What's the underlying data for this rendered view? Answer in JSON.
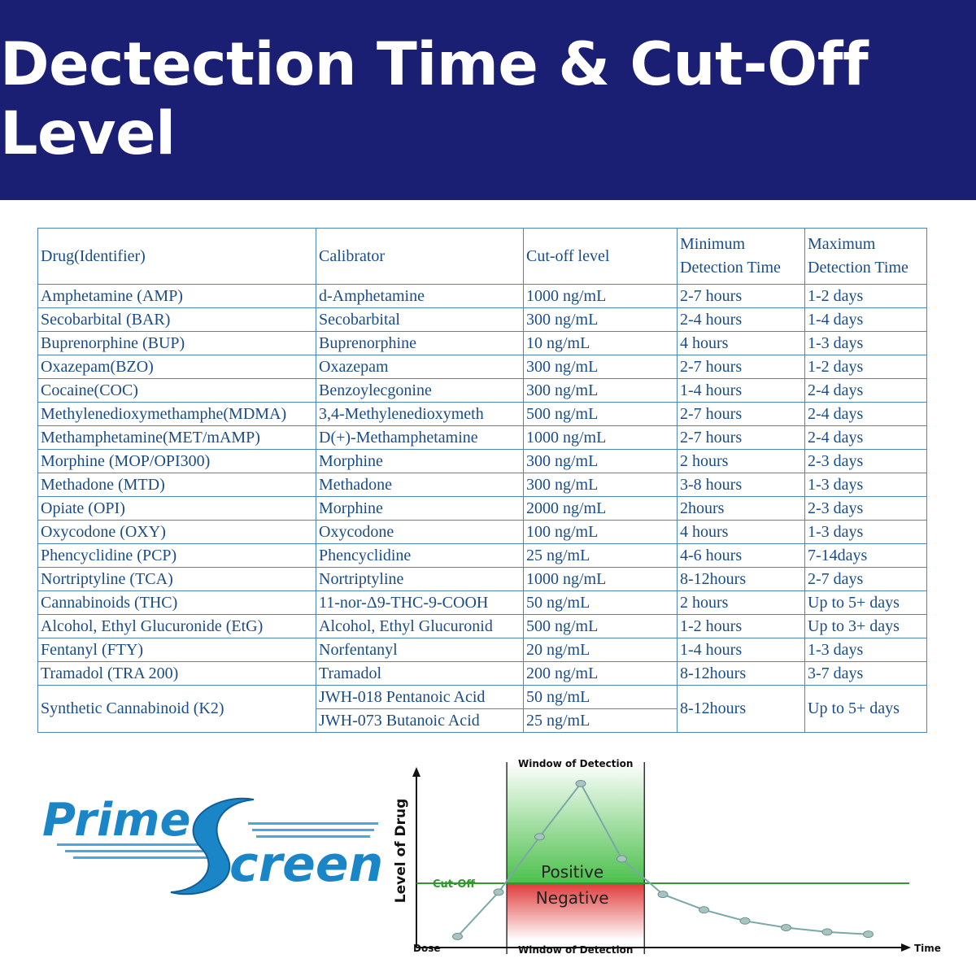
{
  "banner": {
    "title": "Dectection Time & Cut-Off Level"
  },
  "table": {
    "headers": {
      "drug": "Drug(Identifier)",
      "calibrator": "Calibrator",
      "cutoff": "Cut-off level",
      "min_line1": "Minimum",
      "min_line2": "Detection Time",
      "max_line1": "Maximum",
      "max_line2": "Detection Time"
    },
    "rows": [
      {
        "drug": "Amphetamine (AMP)",
        "calibrator": "d-Amphetamine",
        "cutoff": "1000 ng/mL",
        "min": "2-7 hours",
        "max": "1-2 days"
      },
      {
        "drug": "Secobarbital (BAR)",
        "calibrator": "Secobarbital",
        "cutoff": "300 ng/mL",
        "min": "2-4 hours",
        "max": "1-4 days"
      },
      {
        "drug": "Buprenorphine (BUP)",
        "calibrator": "Buprenorphine",
        "cutoff": "10 ng/mL",
        "min": "4 hours",
        "max": "1-3 days"
      },
      {
        "drug": "Oxazepam(BZO)",
        "calibrator": "Oxazepam",
        "cutoff": "300 ng/mL",
        "min": "2-7 hours",
        "max": "1-2 days"
      },
      {
        "drug": "Cocaine(COC)",
        "calibrator": "Benzoylecgonine",
        "cutoff": "300 ng/mL",
        "min": "1-4 hours",
        "max": "2-4 days"
      },
      {
        "drug": "Methylenedioxymethamphe(MDMA)",
        "calibrator": "3,4-Methylenedioxymeth",
        "cutoff": "500 ng/mL",
        "min": "2-7 hours",
        "max": "2-4 days"
      },
      {
        "drug": "Methamphetamine(MET/mAMP)",
        "calibrator": "D(+)-Methamphetamine",
        "cutoff": "1000 ng/mL",
        "min": "2-7 hours",
        "max": "2-4 days"
      },
      {
        "drug": "Morphine (MOP/OPI300)",
        "calibrator": "Morphine",
        "cutoff": "300 ng/mL",
        "min": "2 hours",
        "max": "2-3 days"
      },
      {
        "drug": "Methadone (MTD)",
        "calibrator": "Methadone",
        "cutoff": "300 ng/mL",
        "min": "3-8 hours",
        "max": "1-3 days"
      },
      {
        "drug": "Opiate (OPI)",
        "calibrator": "Morphine",
        "cutoff": "2000 ng/mL",
        "min": "2hours",
        "max": "2-3 days"
      },
      {
        "drug": "Oxycodone (OXY)",
        "calibrator": "Oxycodone",
        "cutoff": "100 ng/mL",
        "min": "4 hours",
        "max": "1-3 days"
      },
      {
        "drug": "Phencyclidine (PCP)",
        "calibrator": "Phencyclidine",
        "cutoff": "25 ng/mL",
        "min": "4-6 hours",
        "max": "7-14days"
      },
      {
        "drug": "Nortriptyline (TCA)",
        "calibrator": "Nortriptyline",
        "cutoff": "1000 ng/mL",
        "min": "8-12hours",
        "max": "2-7 days"
      },
      {
        "drug": "Cannabinoids (THC)",
        "calibrator": "11-nor-Δ9-THC-9-COOH",
        "cutoff": "50 ng/mL",
        "min": "2 hours",
        "max": "Up to 5+ days"
      },
      {
        "drug": "Alcohol, Ethyl Glucuronide (EtG)",
        "calibrator": "Alcohol, Ethyl Glucuronid",
        "cutoff": "500 ng/mL",
        "min": "1-2 hours",
        "max": "Up to 3+ days"
      },
      {
        "drug": "Fentanyl (FTY)",
        "calibrator": "Norfentanyl",
        "cutoff": "20 ng/mL",
        "min": "1-4 hours",
        "max": "1-3 days"
      },
      {
        "drug": "Tramadol (TRA 200)",
        "calibrator": "Tramadol",
        "cutoff": "200 ng/mL",
        "min": "8-12hours",
        "max": "3-7 days"
      }
    ],
    "k2": {
      "drug": "Synthetic Cannabinoid (K2)",
      "calibrator_1": "JWH-018 Pentanoic Acid",
      "cutoff_1": "50 ng/mL",
      "calibrator_2": "JWH-073 Butanoic Acid",
      "cutoff_2": "25 ng/mL",
      "min": "8-12hours",
      "max": "Up to 5+ days"
    }
  },
  "logo": {
    "word1": "Prime",
    "word2": "creen"
  },
  "chart_data": {
    "type": "line",
    "ylabel": "Level of Drug",
    "xlabel": "Time",
    "origin_label": "Dose",
    "cutoff_label": "Cut-Off",
    "window_label_top": "Window of Detection",
    "window_label_bottom": "Window of Detection",
    "positive_label": "Positive",
    "negative_label": "Negative",
    "colors": {
      "line": "#2e9a2e",
      "curve": "#7aa8a8",
      "point": "#a8c4c0",
      "positive": "#4cc04c",
      "negative": "#e03a3a",
      "cutoff": "#2e9a2e"
    },
    "points": [
      [
        1,
        0.5
      ],
      [
        2,
        2.5
      ],
      [
        3,
        5.0
      ],
      [
        4,
        7.4
      ],
      [
        5,
        4.0
      ],
      [
        6,
        2.4
      ],
      [
        7,
        1.7
      ],
      [
        8,
        1.2
      ],
      [
        9,
        0.9
      ],
      [
        10,
        0.7
      ],
      [
        11,
        0.6
      ]
    ],
    "cutoff": 2.9,
    "window": [
      2.2,
      5.55
    ],
    "xlim": [
      0,
      12
    ],
    "ylim": [
      0,
      8
    ]
  }
}
